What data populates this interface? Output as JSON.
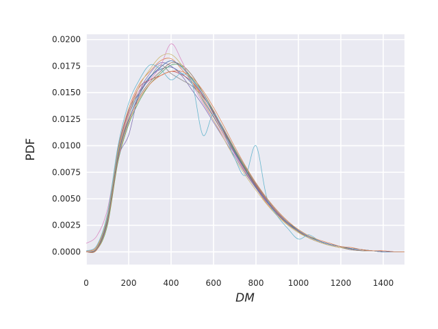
{
  "chart_data": {
    "type": "line",
    "title": "",
    "xlabel": "DM",
    "ylabel": "PDF",
    "xlim": [
      0,
      1500
    ],
    "ylim": [
      -0.0012,
      0.0205
    ],
    "xticks": [
      0,
      200,
      400,
      600,
      800,
      1000,
      1200,
      1400
    ],
    "yticks": [
      0.0,
      0.0025,
      0.005,
      0.0075,
      0.01,
      0.0125,
      0.015,
      0.0175,
      0.02
    ],
    "xtick_labels": [
      "0",
      "200",
      "400",
      "600",
      "800",
      "1000",
      "1200",
      "1400"
    ],
    "ytick_labels": [
      "0.0000",
      "0.0025",
      "0.0050",
      "0.0075",
      "0.0100",
      "0.0125",
      "0.0150",
      "0.0175",
      "0.0200"
    ],
    "grid": true,
    "legend": "none",
    "style": {
      "background": "#EAEAF2",
      "grid_color": "#FFFFFF",
      "palette": [
        "#4C72B0",
        "#DD8452",
        "#55A868",
        "#C44E52",
        "#8172B3",
        "#937860",
        "#DA8BC3",
        "#8C8C8C",
        "#CCB974",
        "#64B5CD"
      ]
    },
    "x": [
      0,
      50,
      100,
      150,
      200,
      250,
      300,
      350,
      400,
      450,
      500,
      550,
      600,
      650,
      700,
      750,
      800,
      850,
      900,
      950,
      1000,
      1050,
      1100,
      1150,
      1200,
      1250,
      1300,
      1350,
      1400,
      1450,
      1500
    ],
    "series": [
      {
        "values": [
          0.0,
          0.0003,
          0.003,
          0.009,
          0.0128,
          0.015,
          0.0165,
          0.0172,
          0.0174,
          0.0168,
          0.0158,
          0.0143,
          0.0127,
          0.011,
          0.0093,
          0.0077,
          0.0062,
          0.0048,
          0.0036,
          0.0027,
          0.0019,
          0.0013,
          0.0009,
          0.0006,
          0.0004,
          0.0002,
          0.0001,
          0.0001,
          0.0,
          0.0,
          0.0
        ]
      },
      {
        "values": [
          0.0001,
          0.0005,
          0.0035,
          0.0098,
          0.0135,
          0.0158,
          0.017,
          0.018,
          0.0182,
          0.0172,
          0.016,
          0.0145,
          0.0128,
          0.011,
          0.0092,
          0.0075,
          0.006,
          0.0046,
          0.0035,
          0.0026,
          0.0019,
          0.0013,
          0.0009,
          0.0006,
          0.0004,
          0.0003,
          0.0002,
          0.0001,
          0.0,
          0.0,
          0.0
        ]
      },
      {
        "values": [
          0.0,
          0.0002,
          0.0025,
          0.0085,
          0.012,
          0.0142,
          0.0158,
          0.0168,
          0.0176,
          0.0175,
          0.0163,
          0.015,
          0.0132,
          0.0115,
          0.0096,
          0.0079,
          0.0064,
          0.005,
          0.0038,
          0.0028,
          0.0021,
          0.0015,
          0.001,
          0.0007,
          0.0005,
          0.0003,
          0.0002,
          0.0001,
          0.0,
          0.0,
          0.0
        ]
      },
      {
        "values": [
          0.0,
          0.0004,
          0.0032,
          0.0095,
          0.0132,
          0.0155,
          0.0162,
          0.0166,
          0.017,
          0.0167,
          0.016,
          0.0147,
          0.0131,
          0.0113,
          0.0095,
          0.0078,
          0.0063,
          0.0049,
          0.0037,
          0.0028,
          0.002,
          0.0014,
          0.001,
          0.0007,
          0.0005,
          0.0003,
          0.0002,
          0.0001,
          0.0001,
          0.0,
          0.0
        ]
      },
      {
        "values": [
          0.0,
          0.0003,
          0.0028,
          0.0088,
          0.011,
          0.015,
          0.0168,
          0.0178,
          0.0175,
          0.0166,
          0.0152,
          0.0138,
          0.0122,
          0.0106,
          0.009,
          0.0074,
          0.006,
          0.0047,
          0.0036,
          0.0027,
          0.002,
          0.0014,
          0.001,
          0.0007,
          0.0005,
          0.0003,
          0.0002,
          0.0001,
          0.0,
          0.0,
          0.0
        ]
      },
      {
        "values": [
          0.0,
          0.0002,
          0.003,
          0.0092,
          0.0125,
          0.0146,
          0.016,
          0.017,
          0.0178,
          0.0176,
          0.0166,
          0.015,
          0.0133,
          0.0114,
          0.0095,
          0.0078,
          0.0062,
          0.0048,
          0.0036,
          0.0026,
          0.0019,
          0.0013,
          0.0009,
          0.0006,
          0.0004,
          0.0002,
          0.0001,
          0.0001,
          0.0,
          0.0,
          0.0
        ]
      },
      {
        "values": [
          0.0008,
          0.0015,
          0.004,
          0.0095,
          0.013,
          0.0152,
          0.0162,
          0.0175,
          0.0196,
          0.018,
          0.0158,
          0.014,
          0.0124,
          0.0108,
          0.0092,
          0.0076,
          0.0061,
          0.0048,
          0.0036,
          0.0027,
          0.002,
          0.0014,
          0.001,
          0.0007,
          0.0005,
          0.0003,
          0.0002,
          0.0001,
          0.0001,
          0.0,
          0.0
        ]
      },
      {
        "values": [
          0.0,
          0.0003,
          0.0032,
          0.0096,
          0.0133,
          0.015,
          0.0164,
          0.0176,
          0.0168,
          0.0162,
          0.0156,
          0.0146,
          0.0132,
          0.0115,
          0.0097,
          0.008,
          0.0064,
          0.005,
          0.0038,
          0.0028,
          0.002,
          0.0014,
          0.001,
          0.0007,
          0.0005,
          0.0003,
          0.0002,
          0.0001,
          0.0,
          0.0,
          0.0
        ]
      },
      {
        "values": [
          0.0,
          0.0004,
          0.0034,
          0.0094,
          0.0128,
          0.0156,
          0.0172,
          0.0184,
          0.0186,
          0.0176,
          0.016,
          0.0142,
          0.0124,
          0.0106,
          0.0088,
          0.0072,
          0.0058,
          0.0045,
          0.0034,
          0.0025,
          0.0018,
          0.0013,
          0.0009,
          0.0006,
          0.0004,
          0.0003,
          0.0002,
          0.0001,
          0.0,
          0.0,
          0.0
        ]
      },
      {
        "values": [
          0.0001,
          0.0006,
          0.0036,
          0.01,
          0.014,
          0.0162,
          0.0176,
          0.0172,
          0.0162,
          0.0168,
          0.0158,
          0.011,
          0.013,
          0.0112,
          0.0088,
          0.0072,
          0.01,
          0.0052,
          0.0034,
          0.0022,
          0.0012,
          0.0016,
          0.001,
          0.0007,
          0.0005,
          0.0003,
          0.0002,
          0.0001,
          0.0,
          0.0,
          0.0
        ]
      },
      {
        "values": [
          0.0,
          0.0003,
          0.0029,
          0.009,
          0.0124,
          0.0148,
          0.0164,
          0.0174,
          0.018,
          0.0174,
          0.0162,
          0.0148,
          0.013,
          0.0112,
          0.0094,
          0.0077,
          0.0061,
          0.0048,
          0.0036,
          0.0027,
          0.002,
          0.0014,
          0.001,
          0.0007,
          0.0005,
          0.0003,
          0.0002,
          0.0001,
          0.0,
          0.0,
          0.0
        ]
      },
      {
        "values": [
          0.0,
          0.0002,
          0.0027,
          0.0087,
          0.0122,
          0.0144,
          0.0158,
          0.0166,
          0.017,
          0.017,
          0.0164,
          0.0152,
          0.0136,
          0.0118,
          0.0099,
          0.0081,
          0.0065,
          0.0051,
          0.0039,
          0.0029,
          0.0021,
          0.0015,
          0.0011,
          0.0008,
          0.0005,
          0.0004,
          0.0002,
          0.0001,
          0.0001,
          0.0,
          0.0
        ]
      }
    ]
  }
}
